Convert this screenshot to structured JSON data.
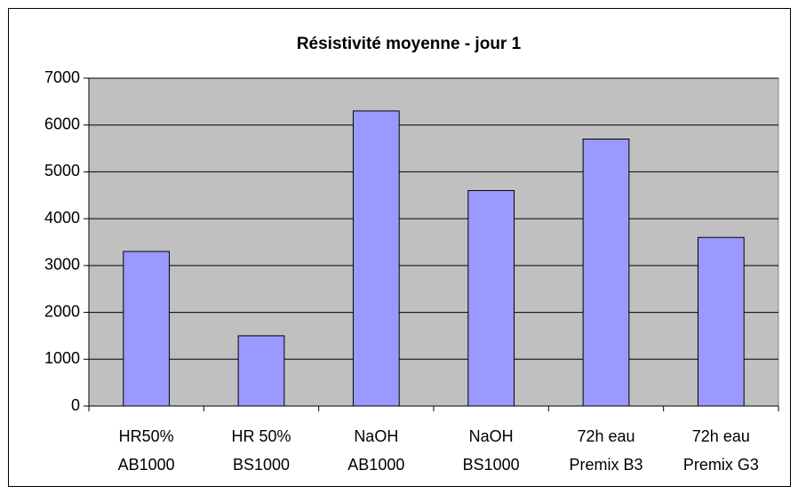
{
  "chart_data": {
    "type": "bar",
    "title": "Résistivité moyenne - jour 1",
    "categories": [
      [
        "HR50%",
        "AB1000"
      ],
      [
        "HR 50%",
        "BS1000"
      ],
      [
        "NaOH",
        "AB1000"
      ],
      [
        "NaOH",
        "BS1000"
      ],
      [
        "72h eau",
        "Premix B3"
      ],
      [
        "72h eau",
        "Premix G3"
      ]
    ],
    "values": [
      3300,
      1500,
      6300,
      4600,
      5700,
      3600
    ],
    "color": "#9999ff",
    "ylim": [
      0,
      7000
    ],
    "yticks": [
      0,
      1000,
      2000,
      3000,
      4000,
      5000,
      6000,
      7000
    ],
    "grid": true
  }
}
